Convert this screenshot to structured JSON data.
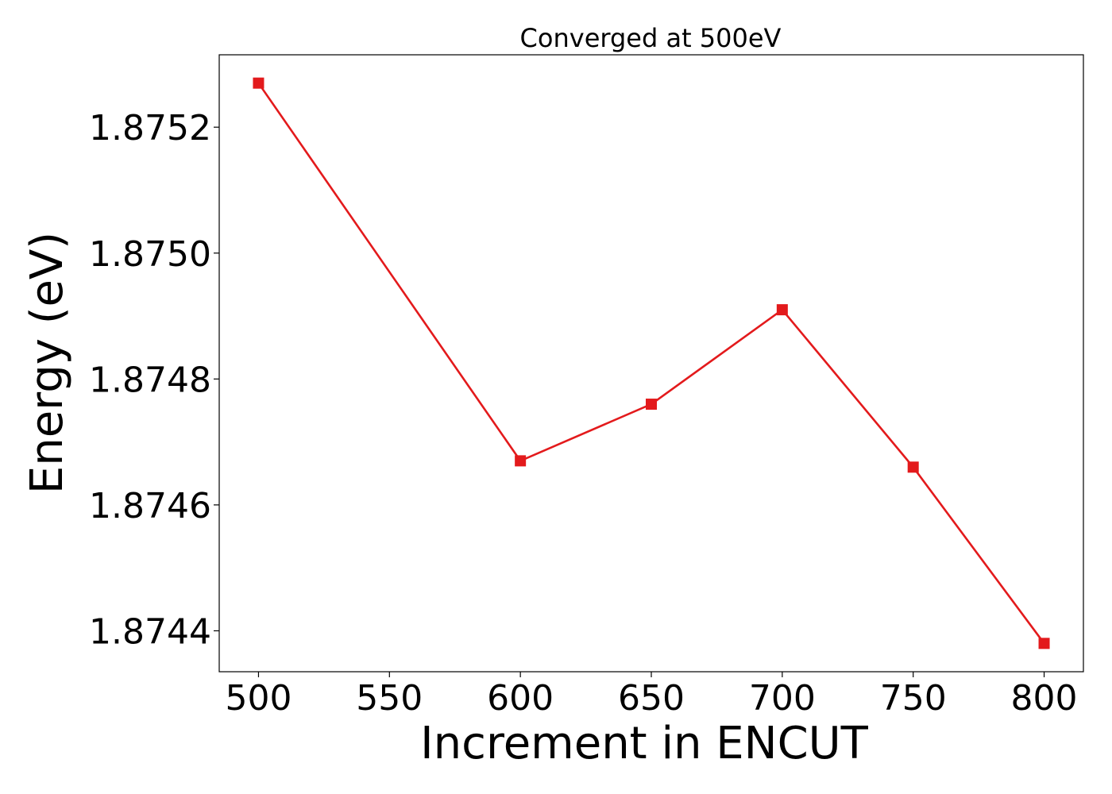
{
  "chart_data": {
    "type": "line",
    "title": "Converged at 500eV",
    "xlabel": "Increment in ENCUT",
    "ylabel": "Energy (eV)",
    "x": [
      500,
      600,
      650,
      700,
      750,
      800
    ],
    "series": [
      {
        "values": [
          1.87527,
          1.87467,
          1.87476,
          1.87491,
          1.87466,
          1.87438
        ],
        "color": "#e31a1c",
        "marker": "square"
      }
    ],
    "xticks": [
      500,
      550,
      600,
      650,
      700,
      750,
      800
    ],
    "xtick_labels": [
      "500",
      "550",
      "600",
      "650",
      "700",
      "750",
      "800"
    ],
    "yticks": [
      1.8744,
      1.8746,
      1.8748,
      1.875,
      1.8752
    ],
    "ytick_labels": [
      "1.8744",
      "1.8746",
      "1.8748",
      "1.8750",
      "1.8752"
    ],
    "xlim": [
      485,
      815
    ],
    "ylim": [
      1.874335,
      1.875315
    ],
    "grid": false,
    "legend": "none"
  }
}
